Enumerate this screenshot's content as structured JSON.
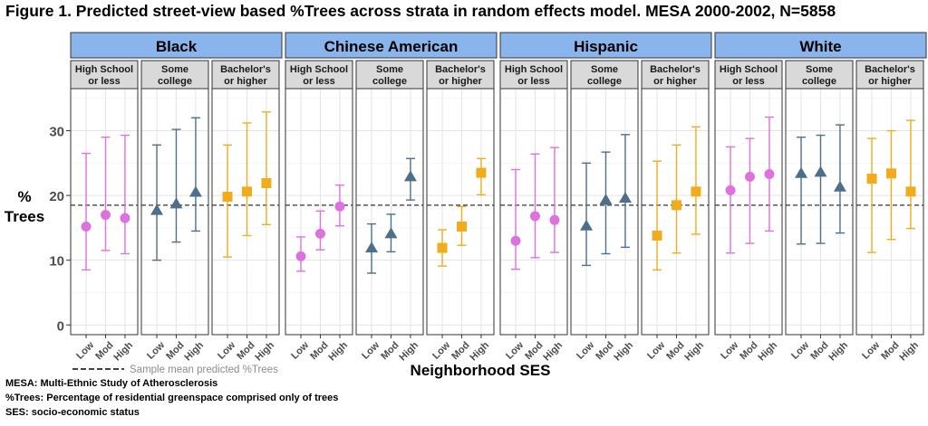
{
  "title": "Figure 1. Predicted street-view based %Trees across strata in random effects model. MESA 2000-2002, N=5858",
  "notes": [
    "MESA: Multi-Ethnic Study of Atherosclerosis",
    "%Trees: Percentage of residential greenspace comprised only of trees",
    "SES: socio-economic status"
  ],
  "chart_data": {
    "type": "scatter",
    "title": "Figure 1. Predicted street-view based %Trees across strata in random effects model. MESA 2000-2002, N=5858",
    "ylabel": [
      "%",
      "Trees"
    ],
    "xlabel": "Neighborhood SES",
    "ylim": [
      -1.5,
      36.5
    ],
    "yticks": [
      0,
      10,
      20,
      30
    ],
    "grid": true,
    "reference_line": {
      "value": 18.5,
      "label": "Sample mean predicted %Trees"
    },
    "x_categories": [
      "Low",
      "Mod",
      "High"
    ],
    "education_levels": [
      {
        "label": [
          "High School",
          "or less"
        ],
        "color": "#dd71dd",
        "marker": "circle"
      },
      {
        "label": [
          "Some",
          "college"
        ],
        "color": "#4e6f8a",
        "marker": "triangle"
      },
      {
        "label": [
          "Bachelor's",
          "or higher"
        ],
        "color": "#f0ac1c",
        "marker": "square"
      }
    ],
    "groups": [
      {
        "name": "Black",
        "panels": [
          {
            "estimate": [
              15.2,
              17.0,
              16.5
            ],
            "lower": [
              8.5,
              11.5,
              11.0
            ],
            "upper": [
              26.5,
              29.0,
              29.3
            ]
          },
          {
            "estimate": [
              17.7,
              18.7,
              20.5
            ],
            "lower": [
              10.0,
              12.8,
              14.5
            ],
            "upper": [
              27.8,
              30.2,
              32.0
            ]
          },
          {
            "estimate": [
              19.8,
              20.6,
              21.9
            ],
            "lower": [
              10.5,
              13.8,
              15.5
            ],
            "upper": [
              27.8,
              31.2,
              32.9
            ]
          }
        ]
      },
      {
        "name": "Chinese American",
        "panels": [
          {
            "estimate": [
              10.6,
              14.1,
              18.3
            ],
            "lower": [
              8.3,
              11.6,
              15.3
            ],
            "upper": [
              13.6,
              17.6,
              21.6
            ]
          },
          {
            "estimate": [
              11.9,
              14.1,
              22.9
            ],
            "lower": [
              8.0,
              11.3,
              19.3
            ],
            "upper": [
              15.6,
              17.1,
              25.7
            ]
          },
          {
            "estimate": [
              11.9,
              15.2,
              23.5
            ],
            "lower": [
              9.1,
              12.3,
              20.1
            ],
            "upper": [
              14.7,
              18.3,
              25.7
            ]
          }
        ]
      },
      {
        "name": "Hispanic",
        "panels": [
          {
            "estimate": [
              13.0,
              16.8,
              16.2
            ],
            "lower": [
              8.6,
              10.4,
              11.2
            ],
            "upper": [
              24.0,
              26.4,
              27.4
            ]
          },
          {
            "estimate": [
              15.3,
              19.3,
              19.6
            ],
            "lower": [
              9.2,
              11.0,
              12.0
            ],
            "upper": [
              25.0,
              26.7,
              29.4
            ]
          },
          {
            "estimate": [
              13.8,
              18.5,
              20.6
            ],
            "lower": [
              8.5,
              11.1,
              14.0
            ],
            "upper": [
              25.3,
              27.8,
              30.6
            ]
          }
        ]
      },
      {
        "name": "White",
        "panels": [
          {
            "estimate": [
              20.8,
              22.9,
              23.3
            ],
            "lower": [
              11.1,
              12.6,
              14.5
            ],
            "upper": [
              27.5,
              28.8,
              32.1
            ]
          },
          {
            "estimate": [
              23.4,
              23.6,
              21.3
            ],
            "lower": [
              12.5,
              12.6,
              14.2
            ],
            "upper": [
              29.0,
              29.3,
              30.9
            ]
          },
          {
            "estimate": [
              22.6,
              23.4,
              20.6
            ],
            "lower": [
              11.2,
              13.2,
              14.9
            ],
            "upper": [
              28.8,
              30.0,
              31.6
            ]
          }
        ]
      }
    ]
  }
}
